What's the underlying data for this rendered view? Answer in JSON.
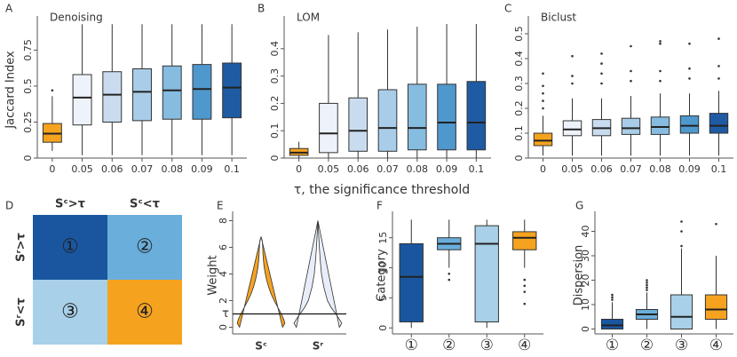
{
  "x_axis_label": "τ, the significance threshold",
  "chart_data": [
    {
      "type": "box",
      "panel_label": "A",
      "title": "Denoising",
      "ylabel": "Jaccard Index",
      "categories": [
        "0",
        "0.05",
        "0.06",
        "0.07",
        "0.08",
        "0.09",
        "0.1"
      ],
      "colors": [
        "#f5a31f",
        "#eef2fb",
        "#c9dcef",
        "#a9cde8",
        "#86bce0",
        "#4f98cd",
        "#1f5ba3"
      ],
      "ylim": [
        0,
        0.95
      ],
      "yticks": [
        0,
        0.25,
        0.5,
        0.75
      ],
      "boxes": [
        {
          "whisker_low": 0.05,
          "q1": 0.11,
          "median": 0.17,
          "q3": 0.24,
          "whisker_high": 0.43,
          "outliers": [
            0.47
          ]
        },
        {
          "whisker_low": 0.02,
          "q1": 0.23,
          "median": 0.42,
          "q3": 0.58,
          "whisker_high": 0.93,
          "outliers": []
        },
        {
          "whisker_low": 0.02,
          "q1": 0.25,
          "median": 0.44,
          "q3": 0.6,
          "whisker_high": 0.93,
          "outliers": []
        },
        {
          "whisker_low": 0.02,
          "q1": 0.26,
          "median": 0.46,
          "q3": 0.62,
          "whisker_high": 0.93,
          "outliers": []
        },
        {
          "whisker_low": 0.02,
          "q1": 0.27,
          "median": 0.47,
          "q3": 0.64,
          "whisker_high": 0.93,
          "outliers": []
        },
        {
          "whisker_low": 0.02,
          "q1": 0.27,
          "median": 0.48,
          "q3": 0.65,
          "whisker_high": 0.93,
          "outliers": []
        },
        {
          "whisker_low": 0.02,
          "q1": 0.28,
          "median": 0.49,
          "q3": 0.66,
          "whisker_high": 0.93,
          "outliers": []
        }
      ]
    },
    {
      "type": "box",
      "panel_label": "B",
      "title": "LOM",
      "categories": [
        "0",
        "0.05",
        "0.06",
        "0.07",
        "0.08",
        "0.09",
        "0.1"
      ],
      "colors": [
        "#f5a31f",
        "#eef2fb",
        "#c9dcef",
        "#a9cde8",
        "#86bce0",
        "#4f98cd",
        "#1f5ba3"
      ],
      "ylim": [
        0,
        0.5
      ],
      "yticks": [
        0,
        0.1,
        0.2,
        0.3,
        0.4
      ],
      "boxes": [
        {
          "whisker_low": 0,
          "q1": 0.01,
          "median": 0.02,
          "q3": 0.035,
          "whisker_high": 0.06,
          "outliers": []
        },
        {
          "whisker_low": 0,
          "q1": 0.02,
          "median": 0.09,
          "q3": 0.2,
          "whisker_high": 0.45,
          "outliers": []
        },
        {
          "whisker_low": 0,
          "q1": 0.025,
          "median": 0.1,
          "q3": 0.22,
          "whisker_high": 0.46,
          "outliers": []
        },
        {
          "whisker_low": 0,
          "q1": 0.025,
          "median": 0.11,
          "q3": 0.25,
          "whisker_high": 0.47,
          "outliers": []
        },
        {
          "whisker_low": 0,
          "q1": 0.03,
          "median": 0.11,
          "q3": 0.27,
          "whisker_high": 0.48,
          "outliers": []
        },
        {
          "whisker_low": 0,
          "q1": 0.03,
          "median": 0.13,
          "q3": 0.27,
          "whisker_high": 0.49,
          "outliers": []
        },
        {
          "whisker_low": 0,
          "q1": 0.03,
          "median": 0.13,
          "q3": 0.28,
          "whisker_high": 0.49,
          "outliers": []
        }
      ]
    },
    {
      "type": "box",
      "panel_label": "C",
      "title": "Biclust",
      "categories": [
        "0",
        "0.05",
        "0.06",
        "0.07",
        "0.08",
        "0.09",
        "0.1"
      ],
      "colors": [
        "#f5a31f",
        "#eef2fb",
        "#c9dcef",
        "#a9cde8",
        "#86bce0",
        "#4f98cd",
        "#1f5ba3"
      ],
      "ylim": [
        0,
        0.55
      ],
      "yticks": [
        0,
        0.1,
        0.2,
        0.3,
        0.4,
        0.5
      ],
      "boxes": [
        {
          "whisker_low": 0.01,
          "q1": 0.05,
          "median": 0.07,
          "q3": 0.1,
          "whisker_high": 0.17,
          "outliers": [
            0.2,
            0.23,
            0.26,
            0.29,
            0.34
          ]
        },
        {
          "whisker_low": 0.01,
          "q1": 0.09,
          "median": 0.115,
          "q3": 0.15,
          "whisker_high": 0.24,
          "outliers": [
            0.3,
            0.33,
            0.41
          ]
        },
        {
          "whisker_low": 0.01,
          "q1": 0.09,
          "median": 0.12,
          "q3": 0.155,
          "whisker_high": 0.24,
          "outliers": [
            0.3,
            0.34,
            0.38,
            0.42
          ]
        },
        {
          "whisker_low": 0.01,
          "q1": 0.095,
          "median": 0.12,
          "q3": 0.16,
          "whisker_high": 0.25,
          "outliers": [
            0.31,
            0.35,
            0.45
          ]
        },
        {
          "whisker_low": 0.01,
          "q1": 0.095,
          "median": 0.125,
          "q3": 0.165,
          "whisker_high": 0.26,
          "outliers": [
            0.31,
            0.35,
            0.46,
            0.47
          ]
        },
        {
          "whisker_low": 0.01,
          "q1": 0.1,
          "median": 0.13,
          "q3": 0.17,
          "whisker_high": 0.26,
          "outliers": [
            0.32,
            0.36,
            0.46
          ]
        },
        {
          "whisker_low": 0.01,
          "q1": 0.1,
          "median": 0.13,
          "q3": 0.18,
          "whisker_high": 0.27,
          "outliers": [
            0.32,
            0.37,
            0.48
          ]
        }
      ]
    },
    {
      "type": "violin",
      "panel_label": "E",
      "ylabel": "Weight",
      "ylim": [
        -0.5,
        8.3
      ],
      "yticks": [
        0,
        2,
        4,
        6,
        8
      ],
      "threshold": {
        "value": 1,
        "label": "τ"
      },
      "series": [
        {
          "name": "Sᶜ",
          "color": "#f5a31f",
          "y": [
            0,
            0.3,
            0.6,
            1,
            1.5,
            2,
            2.5,
            3,
            3.5,
            4,
            4.5,
            5,
            5.5,
            6,
            6.5,
            6.8
          ],
          "density": [
            0.9,
            1,
            0.95,
            0.85,
            0.7,
            0.55,
            0.42,
            0.32,
            0.24,
            0.18,
            0.13,
            0.1,
            0.08,
            0.07,
            0.05,
            0
          ]
        },
        {
          "name": "Sʳ",
          "color": "#e8eef9",
          "y": [
            0,
            0.3,
            0.6,
            1,
            1.5,
            2,
            3,
            4,
            5,
            6,
            7,
            8
          ],
          "density": [
            0.9,
            1,
            0.9,
            0.75,
            0.55,
            0.4,
            0.25,
            0.15,
            0.1,
            0.06,
            0.03,
            0
          ]
        }
      ]
    },
    {
      "type": "box",
      "panel_label": "F",
      "ylabel": "Category",
      "categories": [
        "①",
        "②",
        "③",
        "④"
      ],
      "colors": [
        "#1a56a0",
        "#6aaedb",
        "#a8d0e8",
        "#f5a31f"
      ],
      "ylim": [
        -1,
        18.5
      ],
      "yticks": [
        0,
        5,
        10,
        15
      ],
      "boxes": [
        {
          "whisker_low": 0,
          "q1": 1,
          "median": 8.5,
          "q3": 14,
          "whisker_high": 18,
          "outliers": []
        },
        {
          "whisker_low": 10,
          "q1": 13,
          "median": 14,
          "q3": 15,
          "whisker_high": 18,
          "outliers": [
            8,
            9
          ]
        },
        {
          "whisker_low": 0,
          "q1": 1,
          "median": 14,
          "q3": 17,
          "whisker_high": 18,
          "outliers": []
        },
        {
          "whisker_low": 10,
          "q1": 13,
          "median": 15,
          "q3": 16,
          "whisker_high": 18,
          "outliers": [
            4,
            6,
            7,
            8
          ]
        }
      ]
    },
    {
      "type": "box",
      "panel_label": "G",
      "ylabel": "Dispersion",
      "categories": [
        "①",
        "②",
        "③",
        "④"
      ],
      "colors": [
        "#1a56a0",
        "#6aaedb",
        "#a8d0e8",
        "#f5a31f"
      ],
      "ylim": [
        -2,
        46
      ],
      "yticks": [
        0,
        10,
        20,
        30,
        40
      ],
      "boxes": [
        {
          "whisker_low": 0,
          "q1": 0,
          "median": 1.5,
          "q3": 4,
          "whisker_high": 11,
          "outliers": [
            12,
            13,
            14
          ]
        },
        {
          "whisker_low": 0,
          "q1": 4,
          "median": 6,
          "q3": 8,
          "whisker_high": 15,
          "outliers": [
            16,
            17,
            18,
            19,
            20
          ]
        },
        {
          "whisker_low": 0,
          "q1": 0,
          "median": 5,
          "q3": 14,
          "whisker_high": 33,
          "outliers": [
            34,
            40,
            44
          ]
        },
        {
          "whisker_low": 0,
          "q1": 4,
          "median": 8,
          "q3": 14,
          "whisker_high": 30,
          "outliers": [
            43
          ]
        }
      ]
    }
  ],
  "diagram": {
    "panel_label": "D",
    "column_headers": [
      "Sᶜ>τ",
      "Sᶜ<τ"
    ],
    "row_headers": [
      "Sʳ>τ",
      "Sʳ<τ"
    ],
    "cells": [
      [
        "①",
        "②"
      ],
      [
        "③",
        "④"
      ]
    ],
    "colors": [
      [
        "#1a56a0",
        "#6aaedb"
      ],
      [
        "#a8d0e8",
        "#f5a31f"
      ]
    ]
  }
}
